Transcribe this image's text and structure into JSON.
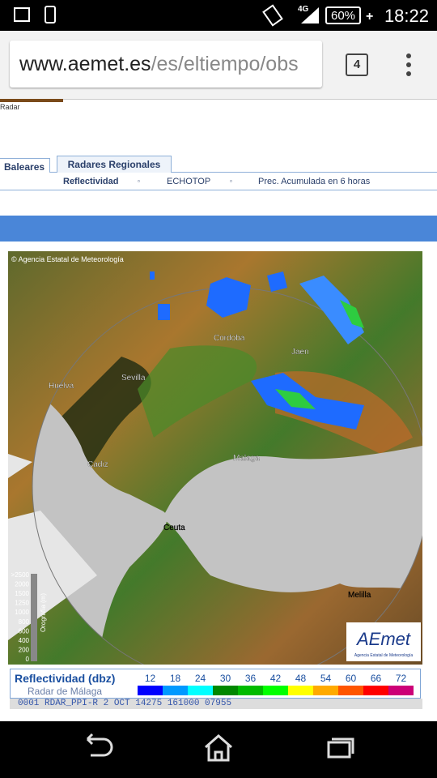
{
  "status": {
    "network": "4G",
    "battery": "60%",
    "time": "18:22"
  },
  "browser": {
    "url_domain": "www.aemet.es",
    "url_path": "/es/eltiempo/obs",
    "tab_count": "4"
  },
  "page": {
    "breadcrumb": "Radar",
    "tabs": [
      "Baleares",
      "Radares Regionales"
    ],
    "links": [
      "Reflectividad",
      "ECHOTOP",
      "Prec. Acumulada en 6 horas"
    ]
  },
  "map": {
    "copyright": "© Agencia Estatal de Meteorología",
    "cities": [
      "Cordoba",
      "Jaen",
      "Sevilla",
      "Huelva",
      "Cadiz",
      "Malaga",
      "Ceuta",
      "Melilla"
    ],
    "elevation_ticks": [
      ">2500",
      "2000",
      "1500",
      "1250",
      "1000",
      "800",
      "600",
      "400",
      "200",
      "0"
    ],
    "elevation_title": "Orografía (m)",
    "logo": "AEmet",
    "logo_sub": "Agencia Estatal de Meteorología"
  },
  "legend": {
    "title": "Reflectividad (dbz)",
    "radar": "Radar de Málaga",
    "values": [
      12,
      18,
      24,
      30,
      36,
      42,
      48,
      54,
      60,
      66,
      72
    ],
    "colors": [
      "#0000ff",
      "#0099ff",
      "#00ffff",
      "#008800",
      "#00bb00",
      "#00ff00",
      "#ffff00",
      "#ffaa00",
      "#ff5500",
      "#ff0000",
      "#cc0077"
    ]
  },
  "footer": {
    "code": "0001 RDAR_PPI-R    2 OCT 14275 161000 07955"
  }
}
